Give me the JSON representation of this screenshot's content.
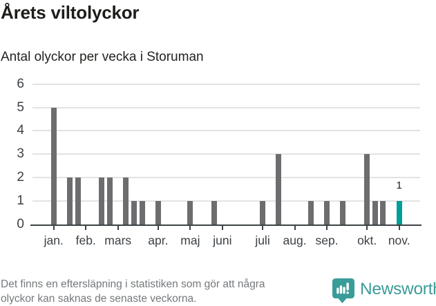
{
  "header": {
    "title": "Årets viltolyckor",
    "subtitle": "Antal olyckor per vecka i Storuman"
  },
  "chart_data": {
    "type": "bar",
    "x_unit": "week-of-year",
    "ylim": [
      0,
      6
    ],
    "yticks": [
      0,
      1,
      2,
      3,
      4,
      5,
      6
    ],
    "grid": true,
    "bars": [
      {
        "week": 1,
        "value": 5
      },
      {
        "week": 3,
        "value": 2
      },
      {
        "week": 4,
        "value": 2
      },
      {
        "week": 7,
        "value": 2
      },
      {
        "week": 8,
        "value": 2
      },
      {
        "week": 10,
        "value": 2
      },
      {
        "week": 11,
        "value": 1
      },
      {
        "week": 12,
        "value": 1
      },
      {
        "week": 14,
        "value": 1
      },
      {
        "week": 18,
        "value": 1
      },
      {
        "week": 21,
        "value": 1
      },
      {
        "week": 27,
        "value": 1
      },
      {
        "week": 29,
        "value": 3
      },
      {
        "week": 33,
        "value": 1
      },
      {
        "week": 35,
        "value": 1
      },
      {
        "week": 37,
        "value": 1
      },
      {
        "week": 40,
        "value": 3
      },
      {
        "week": 41,
        "value": 1
      },
      {
        "week": 42,
        "value": 1
      },
      {
        "week": 44,
        "value": 1,
        "highlight": true,
        "label": "1"
      }
    ],
    "month_ticks": [
      {
        "label": "jan.",
        "week": 1
      },
      {
        "label": "feb.",
        "week": 5
      },
      {
        "label": "mars",
        "week": 9
      },
      {
        "label": "apr.",
        "week": 14
      },
      {
        "label": "maj",
        "week": 18
      },
      {
        "label": "juni",
        "week": 22
      },
      {
        "label": "juli",
        "week": 27
      },
      {
        "label": "aug.",
        "week": 31
      },
      {
        "label": "sep.",
        "week": 35
      },
      {
        "label": "okt.",
        "week": 40
      },
      {
        "label": "nov.",
        "week": 44
      }
    ],
    "colors": {
      "bar": "#6d6d70",
      "highlight": "#009e98",
      "grid": "#e3e3e3",
      "axis": "#3d4245"
    }
  },
  "footer": {
    "note_lines": [
      "Det finns en eftersläpning i statistiken som gör att några",
      "olyckor kan saknas de senaste veckorna."
    ],
    "brand": "Newsworthy",
    "brand_color": "#3a9c99"
  }
}
